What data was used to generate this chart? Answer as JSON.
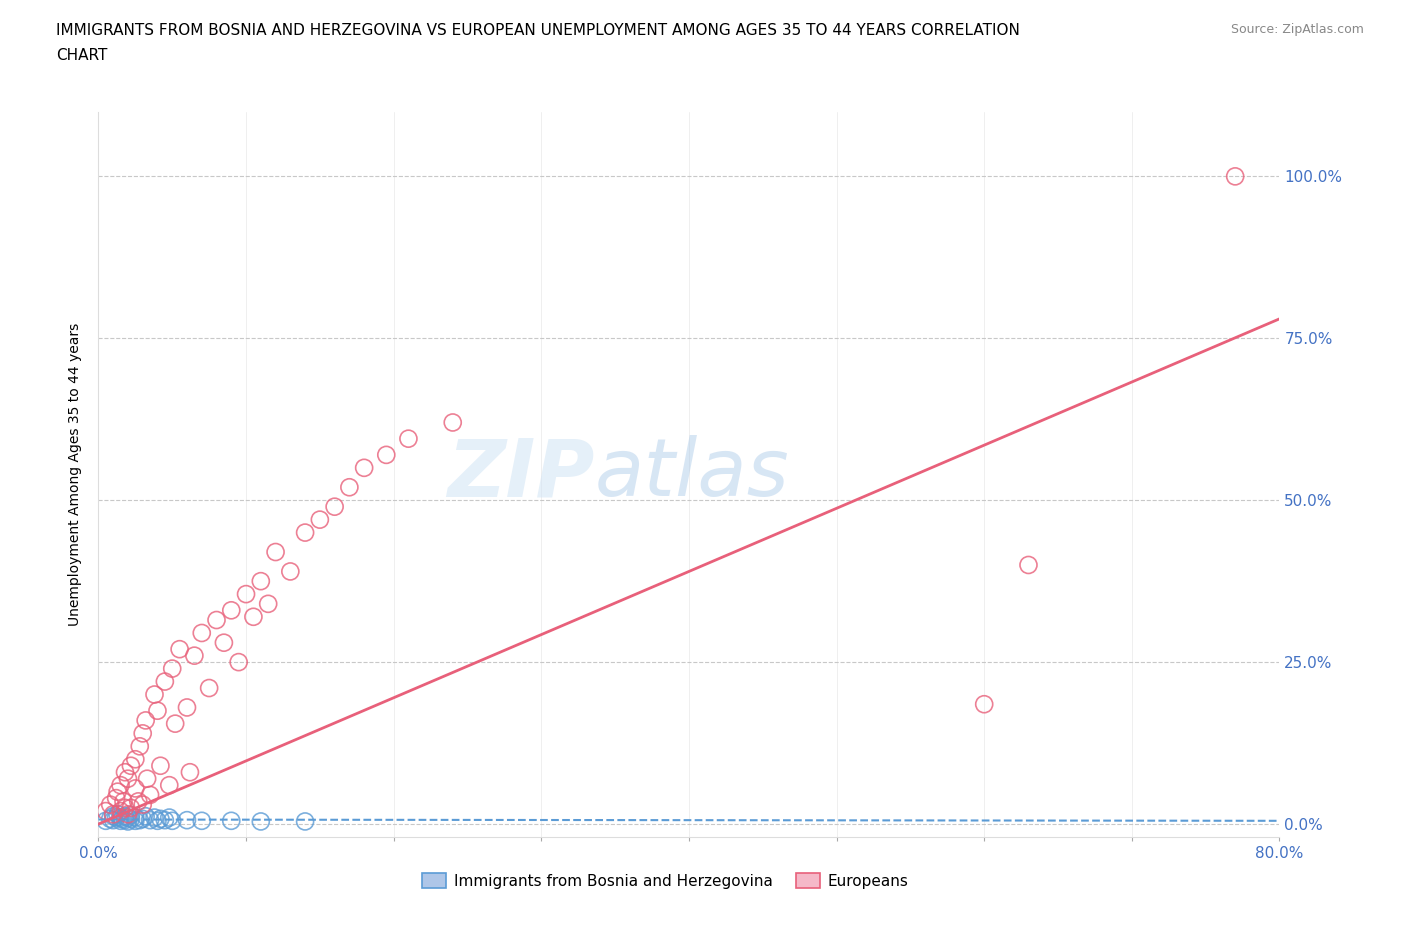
{
  "title_line1": "IMMIGRANTS FROM BOSNIA AND HERZEGOVINA VS EUROPEAN UNEMPLOYMENT AMONG AGES 35 TO 44 YEARS CORRELATION",
  "title_line2": "CHART",
  "source_text": "Source: ZipAtlas.com",
  "ylabel": "Unemployment Among Ages 35 to 44 years",
  "xlim": [
    0.0,
    0.8
  ],
  "ylim": [
    -0.02,
    1.1
  ],
  "x_ticks": [
    0.0,
    0.1,
    0.2,
    0.3,
    0.4,
    0.5,
    0.6,
    0.7,
    0.8
  ],
  "x_tick_labels": [
    "0.0%",
    "",
    "",
    "",
    "",
    "",
    "",
    "",
    "80.0%"
  ],
  "y_ticks": [
    0.0,
    0.25,
    0.5,
    0.75,
    1.0
  ],
  "y_tick_labels": [
    "0.0%",
    "25.0%",
    "50.0%",
    "75.0%",
    "100.0%"
  ],
  "background_color": "#ffffff",
  "grid_color": "#c8c8c8",
  "blue_color": "#aec6e8",
  "pink_color": "#f5b8c8",
  "blue_edge_color": "#5b9bd5",
  "pink_edge_color": "#e8607a",
  "blue_line_color": "#5b9bd5",
  "pink_line_color": "#e8607a",
  "watermark_zip": "ZIP",
  "watermark_atlas": "atlas",
  "blue_scatter_x": [
    0.005,
    0.008,
    0.01,
    0.01,
    0.012,
    0.013,
    0.015,
    0.015,
    0.016,
    0.018,
    0.018,
    0.02,
    0.02,
    0.022,
    0.022,
    0.025,
    0.025,
    0.028,
    0.03,
    0.032,
    0.035,
    0.038,
    0.04,
    0.042,
    0.045,
    0.048,
    0.05,
    0.06,
    0.07,
    0.09,
    0.11,
    0.14
  ],
  "blue_scatter_y": [
    0.005,
    0.008,
    0.006,
    0.012,
    0.01,
    0.015,
    0.005,
    0.01,
    0.008,
    0.006,
    0.012,
    0.004,
    0.01,
    0.008,
    0.014,
    0.005,
    0.01,
    0.006,
    0.008,
    0.012,
    0.006,
    0.01,
    0.005,
    0.008,
    0.006,
    0.01,
    0.005,
    0.006,
    0.005,
    0.005,
    0.004,
    0.004
  ],
  "pink_scatter_x": [
    0.005,
    0.008,
    0.01,
    0.012,
    0.013,
    0.015,
    0.015,
    0.017,
    0.018,
    0.018,
    0.02,
    0.02,
    0.022,
    0.022,
    0.025,
    0.025,
    0.027,
    0.028,
    0.03,
    0.03,
    0.032,
    0.033,
    0.035,
    0.038,
    0.04,
    0.042,
    0.045,
    0.048,
    0.05,
    0.052,
    0.055,
    0.06,
    0.062,
    0.065,
    0.07,
    0.075,
    0.08,
    0.085,
    0.09,
    0.095,
    0.1,
    0.105,
    0.11,
    0.115,
    0.12,
    0.13,
    0.14,
    0.15,
    0.16,
    0.17,
    0.18,
    0.195,
    0.21,
    0.24,
    0.6,
    0.63,
    0.77
  ],
  "pink_scatter_y": [
    0.02,
    0.03,
    0.015,
    0.04,
    0.05,
    0.02,
    0.06,
    0.035,
    0.025,
    0.08,
    0.015,
    0.07,
    0.09,
    0.025,
    0.1,
    0.055,
    0.035,
    0.12,
    0.03,
    0.14,
    0.16,
    0.07,
    0.045,
    0.2,
    0.175,
    0.09,
    0.22,
    0.06,
    0.24,
    0.155,
    0.27,
    0.18,
    0.08,
    0.26,
    0.295,
    0.21,
    0.315,
    0.28,
    0.33,
    0.25,
    0.355,
    0.32,
    0.375,
    0.34,
    0.42,
    0.39,
    0.45,
    0.47,
    0.49,
    0.52,
    0.55,
    0.57,
    0.595,
    0.62,
    0.185,
    0.4,
    1.0
  ],
  "blue_trend_x": [
    0.0,
    0.8
  ],
  "blue_trend_y": [
    0.007,
    0.005
  ],
  "pink_trend_x": [
    0.0,
    0.8
  ],
  "pink_trend_y": [
    0.0,
    0.78
  ]
}
